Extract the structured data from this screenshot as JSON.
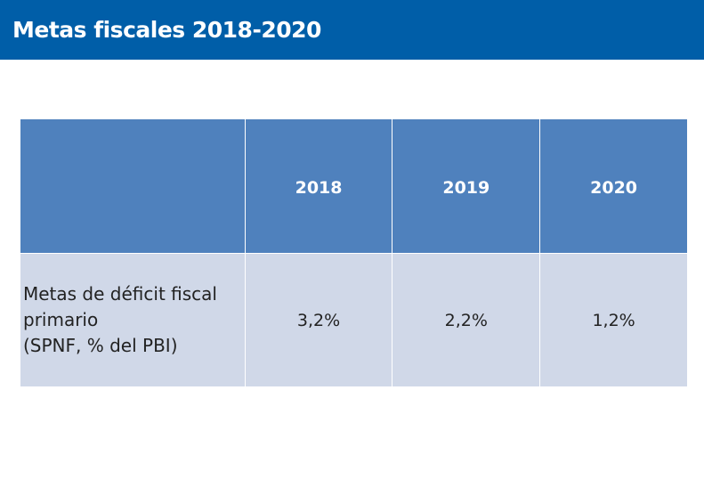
{
  "header": {
    "title": "Metas fiscales 2018-2020"
  },
  "table": {
    "columns": [
      "",
      "2018",
      "2019",
      "2020"
    ],
    "rows": [
      {
        "label_lines": [
          "Metas de déficit fiscal",
          "primario",
          "(SPNF, % del PBI)"
        ],
        "values": [
          "3,2%",
          "2,2%",
          "1,2%"
        ]
      }
    ]
  },
  "colors": {
    "header_bg": "#005ea8",
    "table_header_bg": "#4f81bd",
    "table_body_bg": "#d0d8e8"
  }
}
